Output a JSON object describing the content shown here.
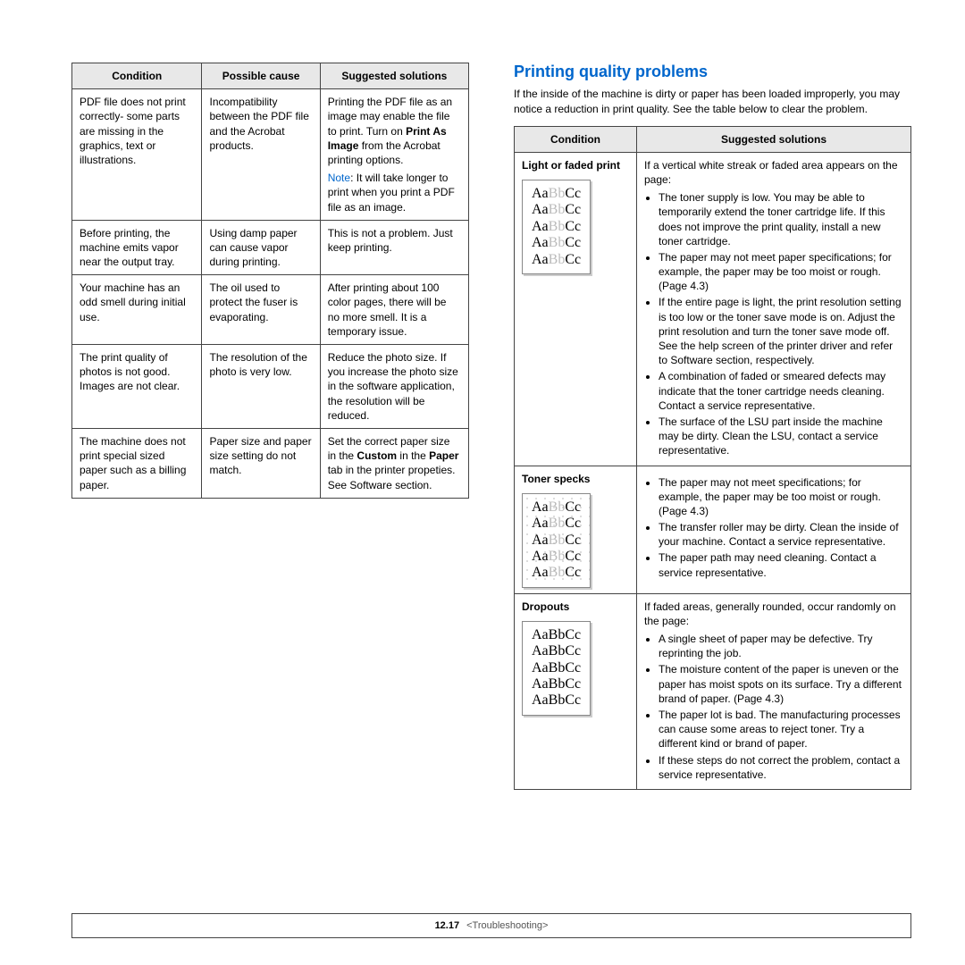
{
  "left_table": {
    "headers": [
      "Condition",
      "Possible cause",
      "Suggested solutions"
    ],
    "rows": [
      {
        "condition": "PDF file does not print correctly- some parts are missing in the graphics, text or illustrations.",
        "cause": "Incompatibility between the PDF file and the Acrobat products.",
        "solution_pre": "Printing the PDF file as an image may enable the file to print. Turn on ",
        "solution_bold": "Print As Image",
        "solution_post": " from the Acrobat printing options.",
        "note_label": "Note",
        "note_text": ": It will take longer to print when you print a PDF file as an image."
      },
      {
        "condition": "Before printing, the machine emits vapor near the output tray.",
        "cause": "Using damp paper can cause vapor during printing.",
        "solution": "This is not a problem. Just keep printing."
      },
      {
        "condition": "Your machine has an odd smell during initial use.",
        "cause": "The oil used to protect the fuser is evaporating.",
        "solution": "After printing about 100 color pages, there will be no more smell. It is a temporary issue."
      },
      {
        "condition": "The print quality of photos is not good. Images are not clear.",
        "cause": "The resolution of the photo is very low.",
        "solution": "Reduce the photo size. If you increase the photo size in the software application, the resolution will be reduced."
      },
      {
        "condition": "The machine does not print special sized paper such as a billing paper.",
        "cause": "Paper size and paper size setting do not match.",
        "solution_pre": "Set the correct paper size in the ",
        "solution_bold1": "Custom",
        "solution_mid": " in the ",
        "solution_bold2": "Paper",
        "solution_post": " tab in the printer propeties. See Software section."
      }
    ]
  },
  "right": {
    "heading": "Printing quality problems",
    "intro": "If the inside of the machine is dirty or paper has been loaded improperly, you may notice a reduction in print quality. See the table below to clear the problem.",
    "headers": [
      "Condition",
      "Suggested solutions"
    ],
    "rows": [
      {
        "cond_title": "Light or faded print",
        "sample": "faded",
        "lead": "If a vertical white streak or faded area appears on the page:",
        "bullets": [
          "The toner supply is low. You may be able to temporarily extend the toner cartridge life. If this does not improve the print quality, install a new toner cartridge.",
          "The paper may not meet paper specifications; for example, the paper may be too moist or rough. (Page 4.3)",
          "If the entire page is light, the print resolution setting is too low or the toner save mode is on. Adjust the print resolution and turn the toner save mode off. See the help screen of the printer driver and refer to Software section, respectively.",
          "A combination of faded or smeared defects may indicate that the toner cartridge needs cleaning. Contact a service representative.",
          "The surface of the LSU part inside the machine may be dirty. Clean the LSU, contact a service representative."
        ]
      },
      {
        "cond_title": "Toner specks",
        "sample": "specks",
        "bullets": [
          "The paper may not meet specifications; for example, the paper may be too moist or rough. (Page 4.3)",
          "The transfer roller may be dirty. Clean the inside of your machine. Contact a service representative.",
          "The paper path may need cleaning. Contact a service representative."
        ]
      },
      {
        "cond_title": "Dropouts",
        "sample": "dropouts",
        "lead": "If faded areas, generally rounded, occur randomly on the page:",
        "bullets": [
          "A single sheet of paper may be defective. Try reprinting the job.",
          "The moisture content of the paper is uneven or the paper has moist spots on its surface. Try a different brand of paper. (Page 4.3)",
          "The paper lot is bad. The manufacturing processes can cause some areas to reject toner. Try a different kind or brand of paper.",
          "If these steps do not correct the problem, contact a service representative."
        ]
      }
    ]
  },
  "footer": {
    "page": "12.17",
    "chapter": "<Troubleshooting>"
  }
}
